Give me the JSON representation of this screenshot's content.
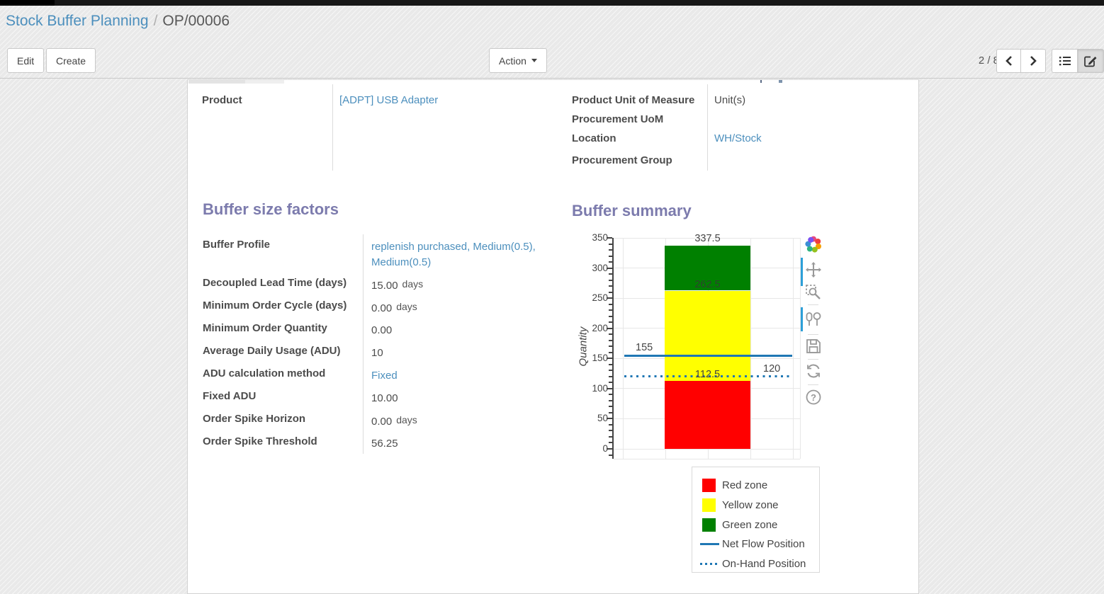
{
  "breadcrumb": {
    "parent": "Stock Buffer Planning",
    "separator": "/",
    "current": "OP/00006"
  },
  "toolbar": {
    "edit_label": "Edit",
    "create_label": "Create",
    "action_label": "Action",
    "pager": "2 / 8"
  },
  "form": {
    "top_left_fields": [
      {
        "label": "Product",
        "value": "[ADPT] USB Adapter",
        "link": true
      }
    ],
    "top_right_fields": [
      {
        "label": "Product Unit of Measure",
        "value": "Unit(s)",
        "link": false
      },
      {
        "label": "Procurement UoM",
        "value": "",
        "link": false
      },
      {
        "label": "Location",
        "value": "WH/Stock",
        "link": true
      },
      {
        "label": "Procurement Group",
        "value": "",
        "link": false
      }
    ],
    "buffer_size_factors": {
      "title": "Buffer size factors",
      "fields": [
        {
          "label": "Buffer Profile",
          "value": "replenish purchased, Medium(0.5), Medium(0.5)",
          "link": true
        },
        {
          "label": "Decoupled Lead Time (days)",
          "value": "15.00",
          "suffix": "days"
        },
        {
          "label": "Minimum Order Cycle (days)",
          "value": "0.00",
          "suffix": "days"
        },
        {
          "label": "Minimum Order Quantity",
          "value": "0.00"
        },
        {
          "label": "Average Daily Usage (ADU)",
          "value": "10"
        },
        {
          "label": "ADU calculation method",
          "value": "Fixed",
          "link": true
        },
        {
          "label": "Fixed ADU",
          "value": "10.00"
        },
        {
          "label": "Order Spike Horizon",
          "value": "0.00",
          "suffix": "days"
        },
        {
          "label": "Order Spike Threshold",
          "value": "56.25"
        }
      ]
    },
    "buffer_summary_title": "Buffer summary"
  },
  "chart_data": {
    "type": "bar",
    "stacked": true,
    "title": "Buffer summary",
    "xlabel": "",
    "ylabel": "Quantity",
    "ylim": [
      0,
      350
    ],
    "yticks": [
      0,
      50,
      100,
      150,
      200,
      250,
      300,
      350
    ],
    "minor_tick_step": 10,
    "grid": true,
    "zones": [
      {
        "name": "Red zone",
        "from": 0,
        "to": 112.5,
        "color": "#ff0000"
      },
      {
        "name": "Yellow zone",
        "from": 112.5,
        "to": 262.5,
        "color": "#ffff00"
      },
      {
        "name": "Green zone",
        "from": 262.5,
        "to": 337.5,
        "color": "#008000"
      }
    ],
    "lines": [
      {
        "name": "Net Flow Position",
        "value": 155,
        "style": "solid",
        "color": "#1f77b4"
      },
      {
        "name": "On-Hand Position",
        "value": 120,
        "style": "dotted",
        "color": "#1f77b4"
      }
    ],
    "point_labels": {
      "green_top": "337.5",
      "green_bottom": "262.5",
      "red_top": "112.5",
      "net_flow": "155",
      "on_hand": "120"
    },
    "legend": {
      "position": "bottom-right",
      "entries": [
        {
          "label": "Red zone",
          "swatch": "square",
          "color": "#ff0000"
        },
        {
          "label": "Yellow zone",
          "swatch": "square",
          "color": "#ffff00"
        },
        {
          "label": "Green zone",
          "swatch": "square",
          "color": "#008000"
        },
        {
          "label": "Net Flow Position",
          "swatch": "line-solid",
          "color": "#1f77b4"
        },
        {
          "label": "On-Hand Position",
          "swatch": "line-dotted",
          "color": "#1f77b4"
        }
      ]
    }
  },
  "colors": {
    "heading_purple": "#7c7bad",
    "link_blue": "#4c8fbd",
    "modebar_accent_blue": "#2d9fd8"
  }
}
